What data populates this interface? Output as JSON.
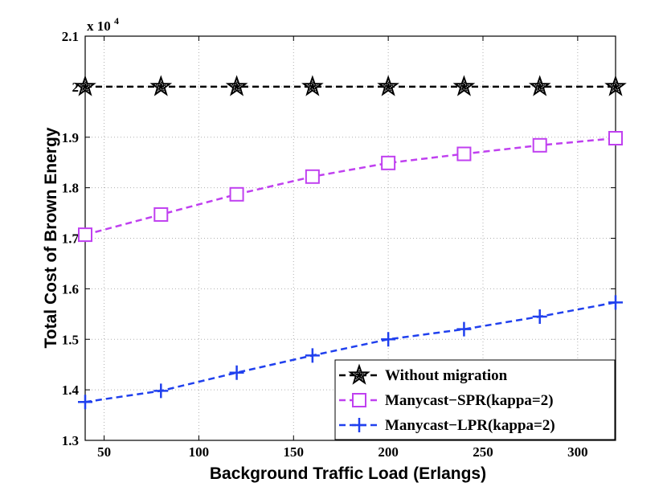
{
  "chart_data": {
    "type": "line",
    "xlabel": "Background Traffic Load (Erlangs)",
    "ylabel": "Total Cost of Brown Energy",
    "exponent_base": "x 10",
    "exponent_power": "4",
    "xlim": [
      40,
      320
    ],
    "ylim": [
      1.3,
      2.1
    ],
    "x_ticks": [
      50,
      100,
      150,
      200,
      250,
      300
    ],
    "y_ticks": [
      1.3,
      1.4,
      1.5,
      1.6,
      1.7,
      1.8,
      1.9,
      2.0,
      2.1
    ],
    "y_tick_labels": [
      "1.3",
      "1.4",
      "1.5",
      "1.6",
      "1.7",
      "1.8",
      "1.9",
      "2",
      "2.1"
    ],
    "grid": true,
    "legend_position": "bottom-right",
    "x": [
      40,
      80,
      120,
      160,
      200,
      240,
      280,
      320
    ],
    "series": [
      {
        "name": "Without migration",
        "color": "#000000",
        "marker": "star",
        "values": [
          2.0,
          2.0,
          2.0,
          2.0,
          2.0,
          2.0,
          2.0,
          2.0
        ]
      },
      {
        "name": "Manycast−SPR(kappa=2)",
        "color": "#c040f0",
        "marker": "square",
        "values": [
          1.707,
          1.747,
          1.787,
          1.822,
          1.849,
          1.867,
          1.884,
          1.898
        ]
      },
      {
        "name": "Manycast−LPR(kappa=2)",
        "color": "#2040ee",
        "marker": "plus",
        "values": [
          1.376,
          1.398,
          1.434,
          1.468,
          1.5,
          1.52,
          1.545,
          1.573
        ]
      }
    ]
  }
}
